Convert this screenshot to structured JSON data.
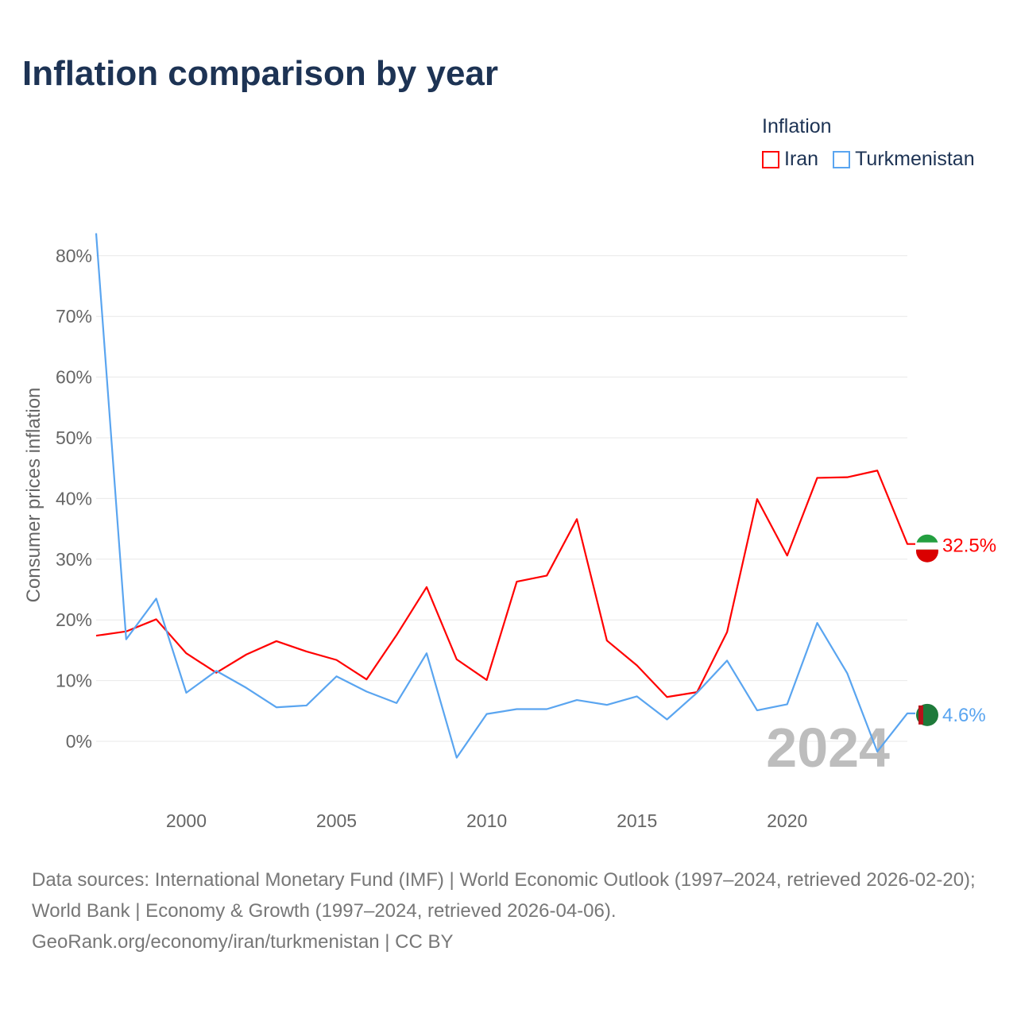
{
  "title": "Inflation comparison by year",
  "legend": {
    "title": "Inflation",
    "items": [
      {
        "name": "Iran",
        "color": "#ff0000"
      },
      {
        "name": "Turkmenistan",
        "color": "#5aa5f0"
      }
    ]
  },
  "footer": {
    "sources": "Data sources: International Monetary Fund (IMF) | World Economic Outlook (1997–2024, retrieved 2026-02-20); World Bank | Economy & Growth (1997–2024, retrieved 2026-04-06).",
    "credit": "GeoRank.org/economy/iran/turkmenistan | CC BY"
  },
  "chart_data": {
    "type": "line",
    "title": "Inflation comparison by year",
    "xlabel": "",
    "ylabel": "Consumer prices inflation",
    "year_label": "2024",
    "x": [
      1997,
      1998,
      1999,
      2000,
      2001,
      2002,
      2003,
      2004,
      2005,
      2006,
      2007,
      2008,
      2009,
      2010,
      2011,
      2012,
      2013,
      2014,
      2015,
      2016,
      2017,
      2018,
      2019,
      2020,
      2021,
      2022,
      2023,
      2024
    ],
    "xlim": [
      1997,
      2024
    ],
    "ylim": [
      -10,
      85
    ],
    "x_ticks": [
      2000,
      2005,
      2010,
      2015,
      2020
    ],
    "y_ticks": [
      0,
      10,
      20,
      30,
      40,
      50,
      60,
      70,
      80
    ],
    "y_tick_labels": [
      "0%",
      "10%",
      "20%",
      "30%",
      "40%",
      "50%",
      "60%",
      "70%",
      "80%"
    ],
    "grid": true,
    "legend_position": "top-right",
    "series": [
      {
        "name": "Iran",
        "color": "#ff0000",
        "end_label": "32.5%",
        "values": [
          17.4,
          18.1,
          20.1,
          14.5,
          11.3,
          14.3,
          16.5,
          14.8,
          13.4,
          10.2,
          17.5,
          25.4,
          13.5,
          10.1,
          26.3,
          27.3,
          36.6,
          16.6,
          12.5,
          7.3,
          8.1,
          18.0,
          39.9,
          30.6,
          43.4,
          43.5,
          44.6,
          32.5
        ]
      },
      {
        "name": "Turkmenistan",
        "color": "#5aa5f0",
        "end_label": "4.6%",
        "values": [
          83.7,
          16.8,
          23.5,
          8.0,
          11.6,
          8.8,
          5.6,
          5.9,
          10.7,
          8.2,
          6.3,
          14.5,
          -2.7,
          4.5,
          5.3,
          5.3,
          6.8,
          6.0,
          7.4,
          3.6,
          8.0,
          13.3,
          5.1,
          6.1,
          19.5,
          11.2,
          -1.7,
          4.6
        ]
      }
    ]
  }
}
